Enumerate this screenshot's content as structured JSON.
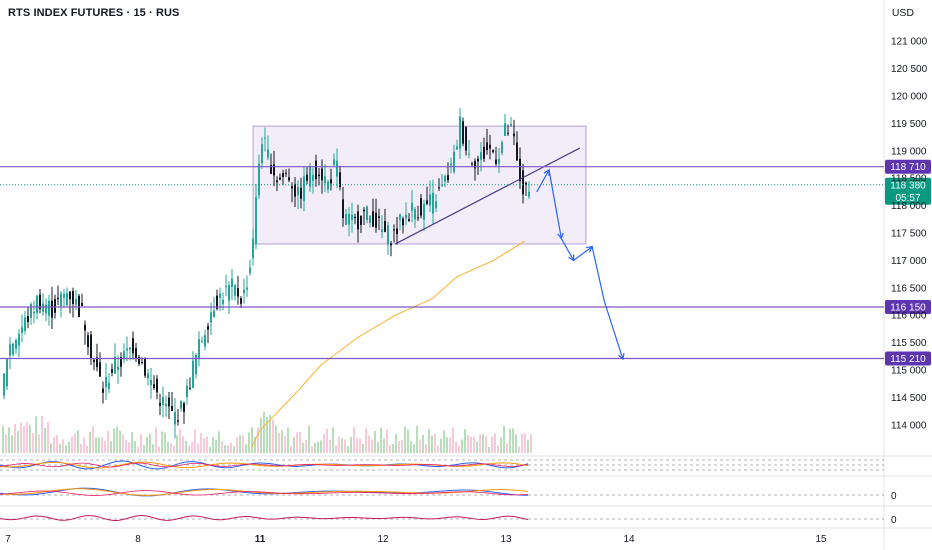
{
  "header": {
    "title": "RTS INDEX FUTURES · 15 · RUS",
    "currency": "USD"
  },
  "colors": {
    "bull": "#26a69a",
    "bear": "#131722",
    "level": "#7e57c2",
    "level_tag": "#5e35b1",
    "price_tag": "#089981",
    "ma": "#f9b12e",
    "projection": "#2962ff",
    "box_fill": "#ede7f6"
  },
  "chart_data": {
    "type": "candlestick",
    "y_axis": {
      "ticks": [
        121000,
        120500,
        120000,
        119500,
        119000,
        118500,
        118000,
        117500,
        117000,
        116500,
        116000,
        115500,
        115000,
        114500,
        114000
      ],
      "tick_labels": [
        "121 000",
        "120 500",
        "120 000",
        "119 500",
        "119 000",
        "118 500",
        "118 000",
        "117 500",
        "117 000",
        "116 500",
        "116 000",
        "115 500",
        "115 000",
        "114 500",
        "114 000"
      ]
    },
    "x_axis": {
      "ticks": [
        "7",
        "8",
        "11",
        "12",
        "13",
        "14",
        "15"
      ],
      "bold_ticks": [
        "11"
      ]
    },
    "horizontal_levels": [
      {
        "value": 118710,
        "label": "118 710"
      },
      {
        "value": 116150,
        "label": "116 150"
      },
      {
        "value": 115210,
        "label": "115 210"
      }
    ],
    "last_price": {
      "value": 118380,
      "label": "118 380",
      "countdown": "05:57"
    },
    "range_box": {
      "from_day": 10.83,
      "to_day": 13.65,
      "high": 119450,
      "low": 117300
    },
    "trendline": {
      "from": [
        12.1,
        117300
      ],
      "to": [
        13.6,
        119050
      ]
    },
    "moving_average": [
      [
        10.8,
        113600
      ],
      [
        11.0,
        113900
      ],
      [
        11.3,
        114600
      ],
      [
        11.5,
        115100
      ],
      [
        11.8,
        115600
      ],
      [
        12.1,
        116000
      ],
      [
        12.4,
        116300
      ],
      [
        12.6,
        116700
      ],
      [
        12.9,
        117000
      ],
      [
        13.15,
        117350
      ]
    ],
    "projection_path": [
      [
        13.25,
        118250
      ],
      [
        13.35,
        118650
      ],
      [
        13.45,
        117400
      ],
      [
        13.55,
        117000
      ],
      [
        13.7,
        117250
      ],
      [
        13.8,
        116250
      ],
      [
        13.95,
        115200
      ]
    ],
    "sub_indicators": [
      {
        "zero_label": ""
      },
      {
        "zero_label": "0"
      },
      {
        "zero_label": "0"
      }
    ]
  }
}
